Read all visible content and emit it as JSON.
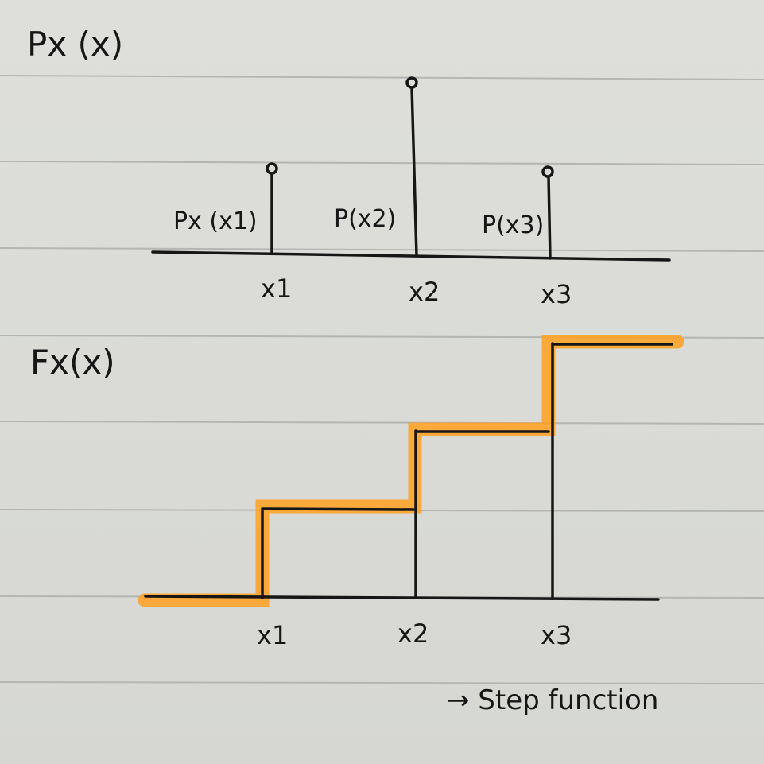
{
  "pmf": {
    "title": "Px (x)",
    "stem_labels": [
      "Px (x1)",
      "P(x2)",
      "P(x3)"
    ],
    "x_labels": [
      "x1",
      "x2",
      "x3"
    ],
    "probabilities": [
      0.25,
      0.5,
      0.25
    ]
  },
  "cdf": {
    "title": "Fx(x)",
    "x_labels": [
      "x1",
      "x2",
      "x3"
    ],
    "step_levels": [
      0,
      0.25,
      0.75,
      1.0
    ]
  },
  "note": "→ Step function",
  "colors": {
    "ink": "#161616",
    "highlight": "#ffa020",
    "paper": "#dadbd7",
    "rule": "#b5b7b4"
  }
}
